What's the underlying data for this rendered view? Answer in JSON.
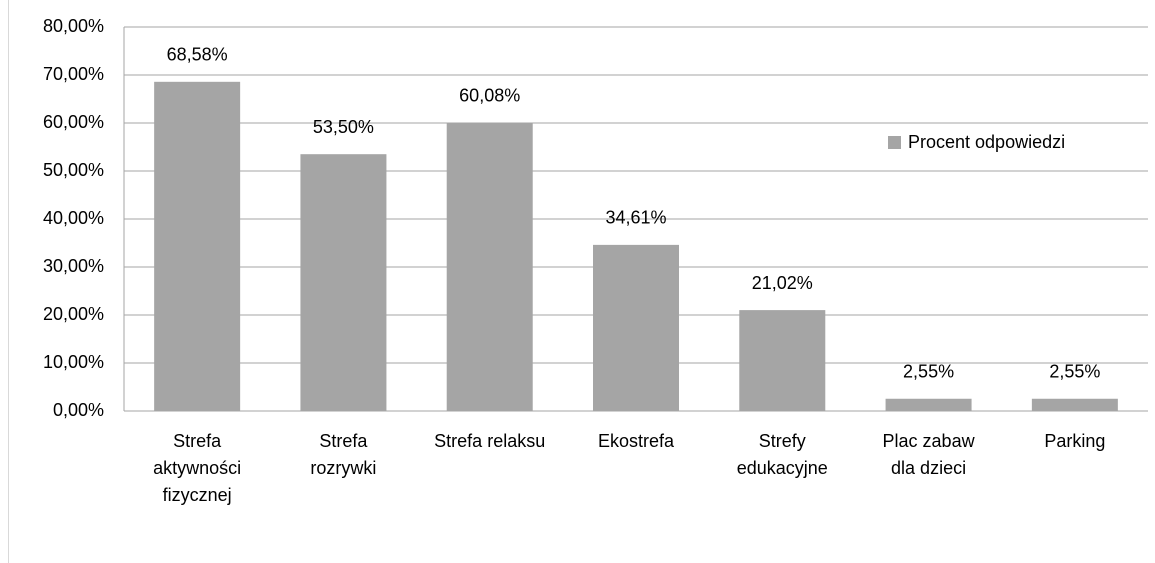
{
  "chart_data": {
    "type": "bar",
    "categories": [
      "Strefa\naktywności\nfizycznej",
      "Strefa\nrozrywki",
      "Strefa relaksu",
      "Ekostrefa",
      "Strefy\nedukacyjne",
      "Plac zabaw\ndla dzieci",
      "Parking"
    ],
    "series": [
      {
        "name": "Procent odpowiedzi",
        "color": "#a5a5a5",
        "values": [
          68.58,
          53.5,
          60.08,
          34.61,
          21.02,
          2.55,
          2.55
        ],
        "value_labels": [
          "68,58%",
          "53,50%",
          "60,08%",
          "34,61%",
          "21,02%",
          "2,55%",
          "2,55%"
        ]
      }
    ],
    "ylim": [
      0,
      80
    ],
    "yticks": [
      {
        "value": 0,
        "label": "0,00%"
      },
      {
        "value": 10,
        "label": "10,00%"
      },
      {
        "value": 20,
        "label": "20,00%"
      },
      {
        "value": 30,
        "label": "30,00%"
      },
      {
        "value": 40,
        "label": "40,00%"
      },
      {
        "value": 50,
        "label": "50,00%"
      },
      {
        "value": 60,
        "label": "60,00%"
      },
      {
        "value": 70,
        "label": "70,00%"
      },
      {
        "value": 80,
        "label": "80,00%"
      }
    ],
    "grid": true,
    "legend": "right"
  }
}
